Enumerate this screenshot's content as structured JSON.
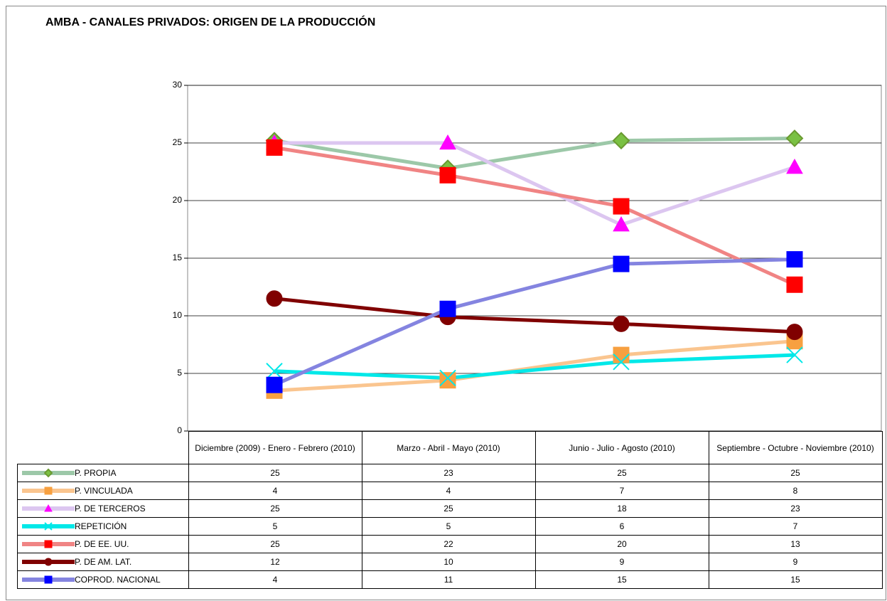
{
  "chart_data": {
    "type": "line",
    "title": "AMBA - CANALES PRIVADOS: ORIGEN DE LA PRODUCCIÓN",
    "categories": [
      "Diciembre (2009) - Enero - Febrero (2010)",
      "Marzo - Abril - Mayo (2010)",
      "Junio - Julio - Agosto (2010)",
      "Septiembre - Octubre - Noviembre (2010)"
    ],
    "ylim": [
      0,
      30
    ],
    "yticks": [
      0,
      5,
      10,
      15,
      20,
      25,
      30
    ],
    "grid": true,
    "series": [
      {
        "name": "P. PROPIA",
        "color": "#9cc8a8",
        "marker": "diamond",
        "marker_color": "#7ac143",
        "values": [
          25.2,
          22.8,
          25.2,
          25.4
        ],
        "value_labels": [
          "25",
          "23",
          "25",
          "25"
        ]
      },
      {
        "name": "P. VINCULADA",
        "color": "#fac58f",
        "marker": "square",
        "marker_color": "#f7a040",
        "values": [
          3.5,
          4.4,
          6.6,
          7.8
        ],
        "value_labels": [
          "4",
          "4",
          "7",
          "8"
        ]
      },
      {
        "name": "P. DE TERCEROS",
        "color": "#dcc6f0",
        "marker": "triangle",
        "marker_color": "#ff00ff",
        "values": [
          25.0,
          25.0,
          17.9,
          22.9
        ],
        "value_labels": [
          "25",
          "25",
          "18",
          "23"
        ]
      },
      {
        "name": "REPETICIÓN",
        "color": "#00e8e8",
        "marker": "x",
        "marker_color": "#00e8e8",
        "values": [
          5.2,
          4.6,
          6.0,
          6.6
        ],
        "value_labels": [
          "5",
          "5",
          "6",
          "7"
        ]
      },
      {
        "name": "P. DE EE. UU.",
        "color": "#f08484",
        "marker": "square",
        "marker_color": "#ff0000",
        "values": [
          24.6,
          22.2,
          19.5,
          12.7
        ],
        "value_labels": [
          "25",
          "22",
          "20",
          "13"
        ]
      },
      {
        "name": "P. DE AM. LAT.",
        "color": "#800000",
        "marker": "circle",
        "marker_color": "#800000",
        "values": [
          11.5,
          9.9,
          9.3,
          8.6
        ],
        "value_labels": [
          "12",
          "10",
          "9",
          "9"
        ]
      },
      {
        "name": "COPROD. NACIONAL",
        "color": "#8484e0",
        "marker": "square",
        "marker_color": "#0000ff",
        "values": [
          4.0,
          10.6,
          14.5,
          14.9
        ],
        "value_labels": [
          "4",
          "11",
          "15",
          "15"
        ]
      }
    ]
  }
}
